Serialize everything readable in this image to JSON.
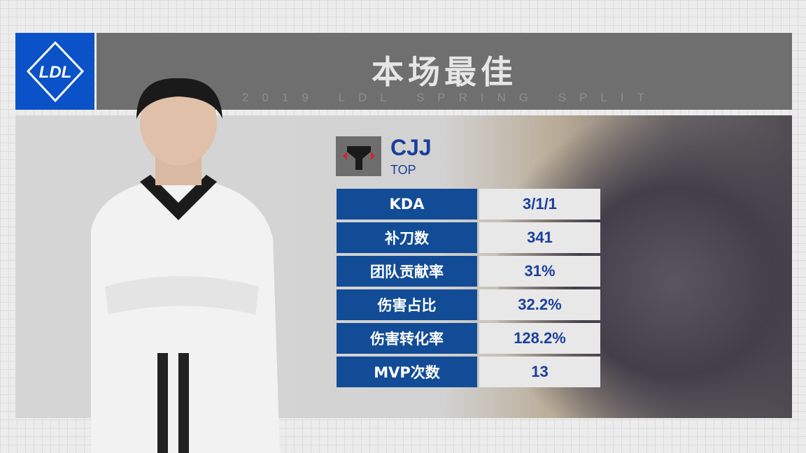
{
  "header": {
    "title": "本场最佳",
    "subtitle": "2019 LDL SPRING SPLIT",
    "league_logo": "LDL"
  },
  "player": {
    "name": "CJJ",
    "role": "TOP",
    "team_logo": "Y"
  },
  "stats": [
    {
      "label": "KDA",
      "value": "3/1/1"
    },
    {
      "label": "补刀数",
      "value": "341"
    },
    {
      "label": "团队贡献率",
      "value": "31%"
    },
    {
      "label": "伤害占比",
      "value": "32.2%"
    },
    {
      "label": "伤害转化率",
      "value": "128.2%"
    },
    {
      "label": "MVP次数",
      "value": "13"
    }
  ],
  "colors": {
    "brand_blue": "#0b52c8",
    "stat_label_bg": "#124c96",
    "text_blue": "#1a3f9c",
    "banner_gray": "#6f6f6f"
  }
}
